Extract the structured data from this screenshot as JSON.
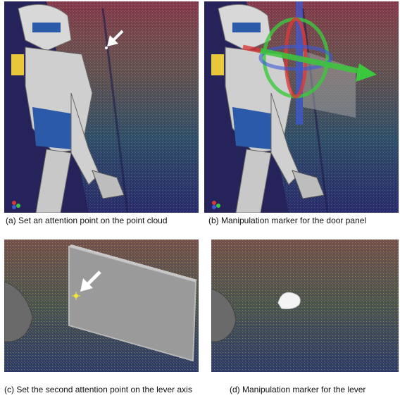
{
  "figure": {
    "panels": [
      {
        "id": "a",
        "caption": "(a) Set an attention point on the point cloud"
      },
      {
        "id": "b",
        "caption": "(b) Manipulation marker for the door panel"
      },
      {
        "id": "c",
        "caption": "(c) Set the second attention point on the lever axis"
      },
      {
        "id": "d",
        "caption": "(d) Manipulation marker for the lever"
      }
    ]
  },
  "colors": {
    "background": "#26235a",
    "cloud_warm": "#e0503a",
    "cloud_cool": "#3a8a7a",
    "robot_white": "#d8d8d8",
    "robot_blue": "#2a5aa8",
    "marker_green": "#3cc83c",
    "marker_red": "#d83a3a",
    "marker_blue": "#3a5ad8",
    "panel_gray": "#9a9a9a"
  }
}
